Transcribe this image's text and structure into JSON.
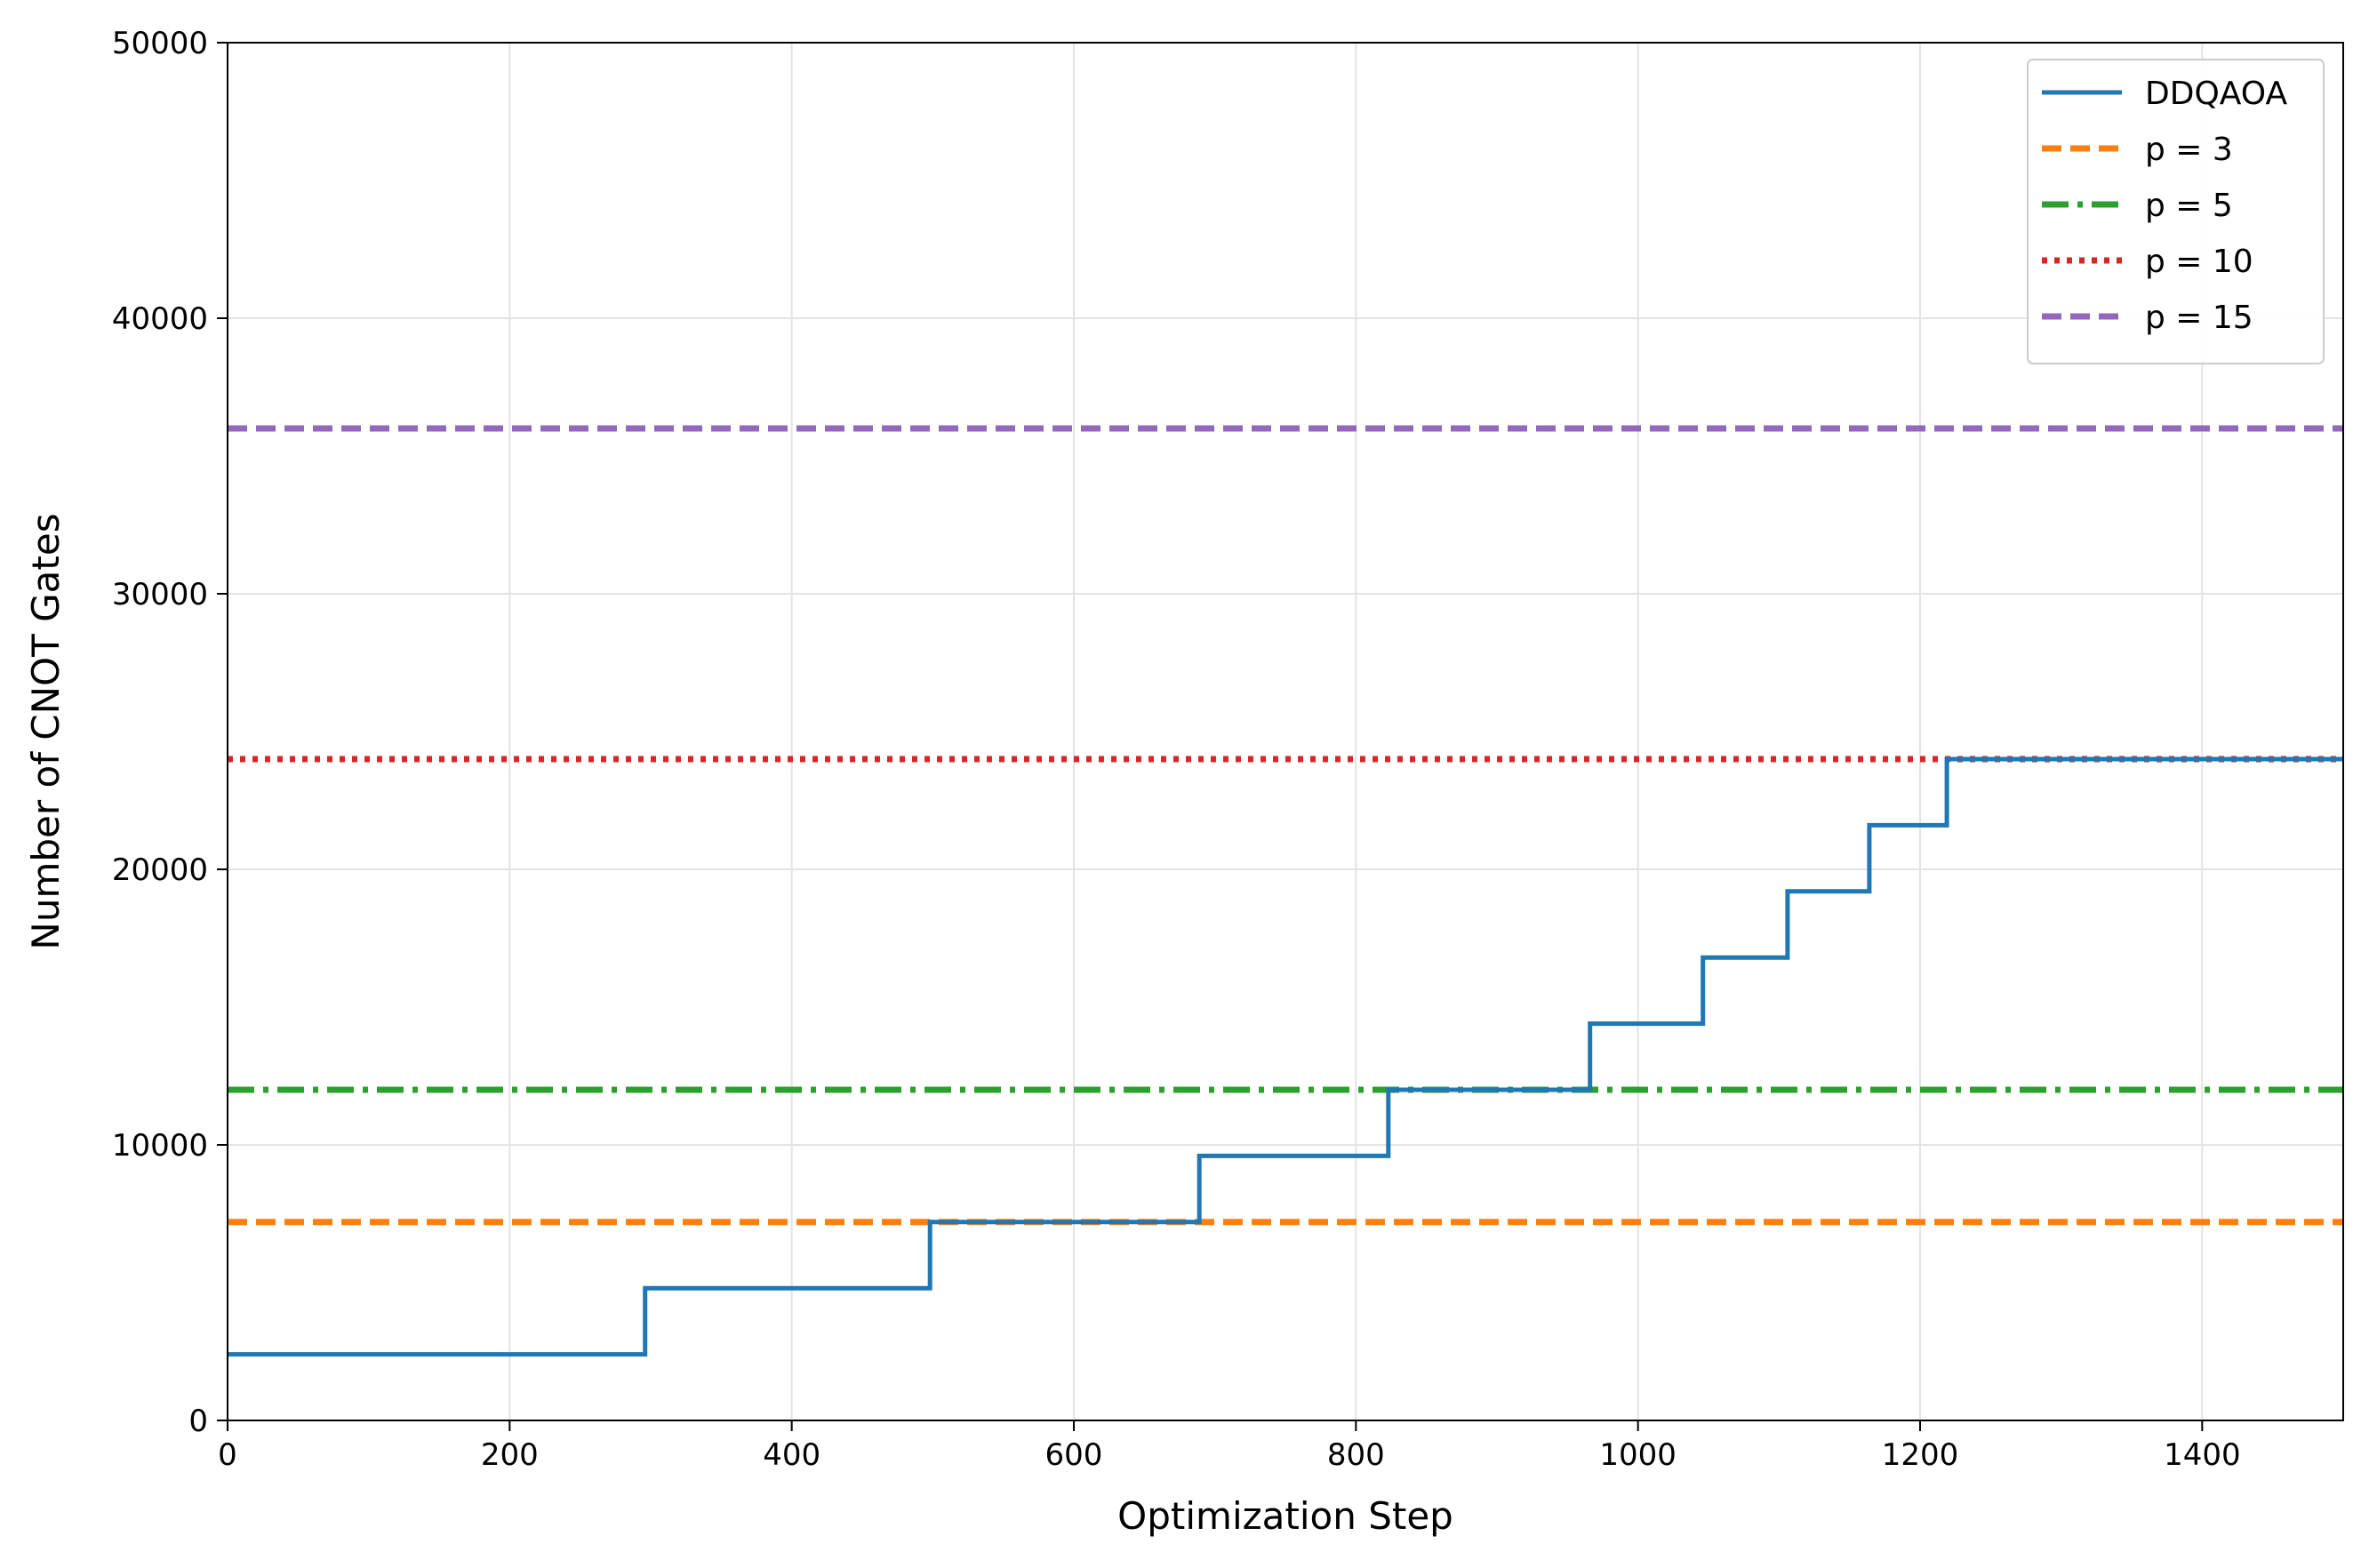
{
  "chart_data": {
    "type": "line",
    "title": "",
    "xlabel": "Optimization Step",
    "ylabel": "Number of CNOT Gates",
    "xlim": [
      0,
      1500
    ],
    "ylim": [
      0,
      50000
    ],
    "xticks": [
      "0",
      "200",
      "400",
      "600",
      "800",
      "1000",
      "1200",
      "1400"
    ],
    "xtick_values": [
      0,
      200,
      400,
      600,
      800,
      1000,
      1200,
      1400
    ],
    "yticks": [
      "0",
      "10000",
      "20000",
      "30000",
      "40000",
      "50000"
    ],
    "ytick_values": [
      0,
      10000,
      20000,
      30000,
      40000,
      50000
    ],
    "grid": true,
    "legend_position": "top-right",
    "series": [
      {
        "name": "DDQAOA",
        "color": "#1f77b4",
        "style": "solid",
        "step": true,
        "x": [
          0,
          296,
          498,
          689,
          823,
          966,
          1046,
          1106,
          1164,
          1219,
          1500
        ],
        "y": [
          2400,
          4800,
          7200,
          9600,
          12000,
          14400,
          16800,
          19200,
          21600,
          24000,
          24000
        ]
      },
      {
        "name": "p = 3",
        "color": "#ff7f0e",
        "style": "dashed",
        "constant": 7200
      },
      {
        "name": "p = 5",
        "color": "#2ca02c",
        "style": "dashdot",
        "constant": 12000
      },
      {
        "name": "p = 10",
        "color": "#d62728",
        "style": "dotted",
        "constant": 24000
      },
      {
        "name": "p = 15",
        "color": "#9467bd",
        "style": "dashed",
        "constant": 36000
      }
    ]
  }
}
